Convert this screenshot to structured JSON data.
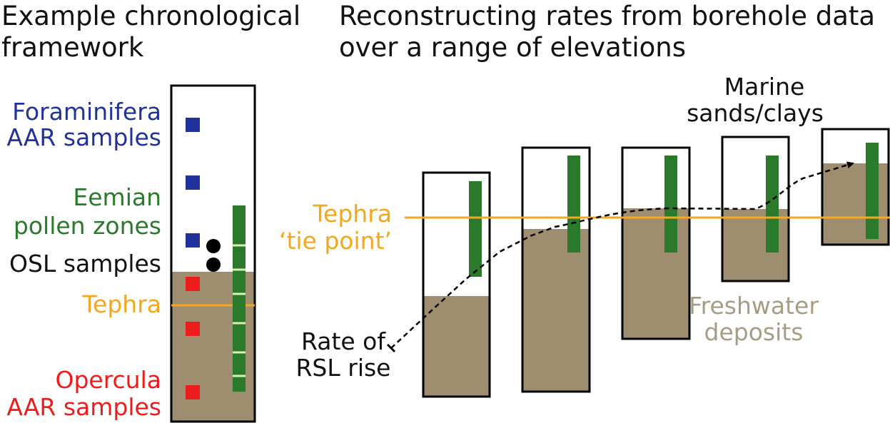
{
  "left_panel": {
    "title_line1": "Example chronological",
    "title_line2": "framework",
    "labels": {
      "foraminifera_line1": "Foraminifera",
      "foraminifera_line2": "AAR samples",
      "eemian_line1": "Eemian",
      "eemian_line2": "pollen zones",
      "osl": "OSL samples",
      "tephra": "Tephra",
      "opercula_line1": "Opercula",
      "opercula_line2": "AAR samples"
    }
  },
  "right_panel": {
    "title_line1": "Reconstructing rates from borehole data",
    "title_line2": "over a range of elevations",
    "labels": {
      "marine_line1": "Marine",
      "marine_line2": "sands/clays",
      "tephra_line1": "Tephra",
      "tephra_line2": "‘tie point’",
      "freshwater_line1": "Freshwater",
      "freshwater_line2": "deposits",
      "rate_line1": "Rate of",
      "rate_line2": "RSL rise"
    }
  },
  "colors": {
    "foraminifera": "#21339a",
    "eemian": "#2b7a2b",
    "osl": "#000000",
    "tephra": "#f5a81e",
    "opercula": "#ee1c1c",
    "sediment": "#9e8d6f",
    "freshwater_text": "#a89c84",
    "pollen_tick": "#d8f0b0"
  }
}
